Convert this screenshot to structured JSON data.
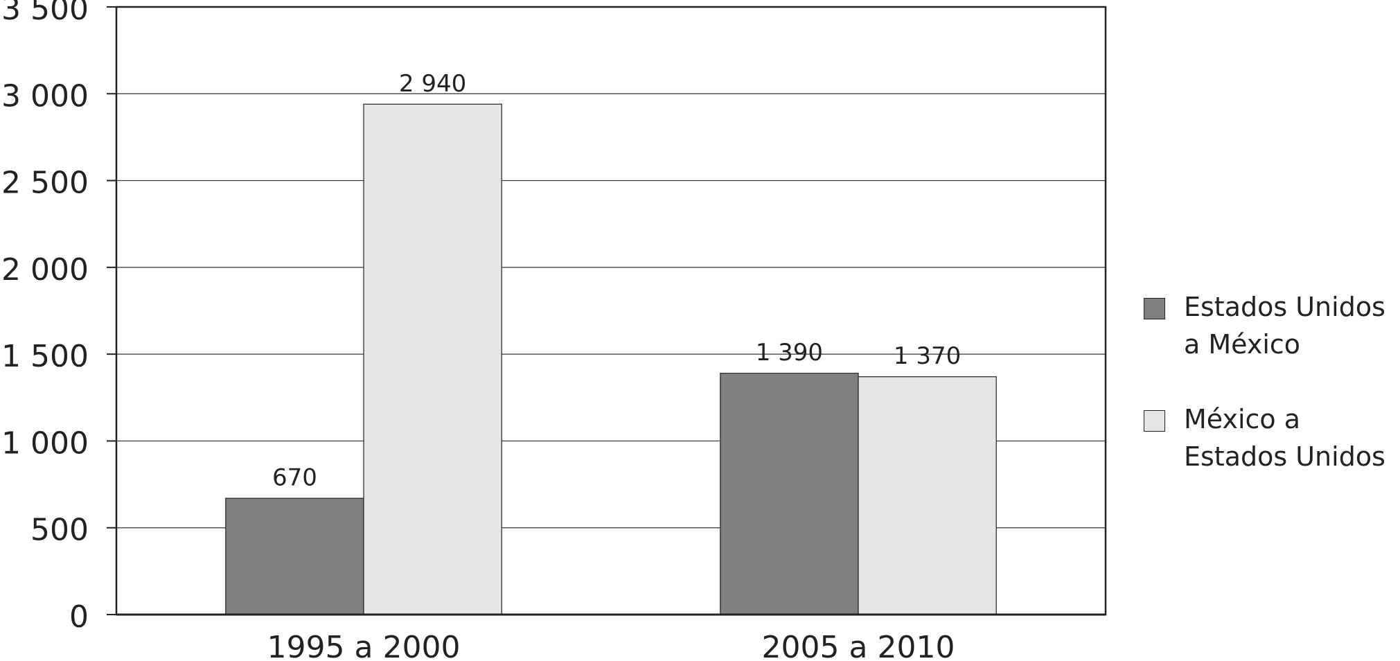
{
  "chart_data": {
    "type": "bar",
    "categories": [
      "1995 a 2000",
      "2005 a 2010"
    ],
    "series": [
      {
        "name": "Estados Unidos a México",
        "color": "#808080",
        "values": [
          670,
          1390
        ],
        "value_labels": [
          "670",
          "1 390"
        ]
      },
      {
        "name": "México a Estados Unidos",
        "color": "#e6e6e6",
        "values": [
          2940,
          1370
        ],
        "value_labels": [
          "2 940",
          "1 370"
        ]
      }
    ],
    "ylim": [
      0,
      3500
    ],
    "yticks": [
      0,
      500,
      {
        "value": 1000,
        "label": "1 000"
      },
      {
        "value": 1500,
        "label": "1 500"
      },
      {
        "value": 2000,
        "label": "2 000"
      },
      {
        "value": 2500,
        "label": "2 500"
      },
      {
        "value": 3000,
        "label": "3 000"
      },
      {
        "value": 3500,
        "label": "3 500"
      }
    ],
    "grid": true,
    "legend": "right"
  }
}
